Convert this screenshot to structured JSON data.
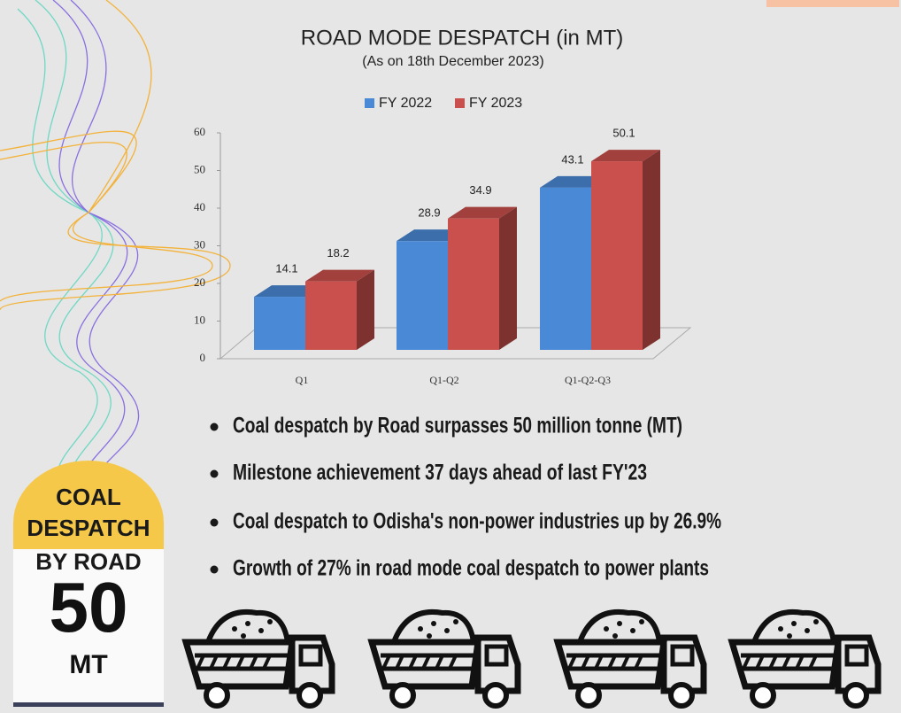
{
  "chart_data": {
    "type": "bar3d",
    "title": "ROAD MODE DESPATCH (in MT)",
    "subtitle": "(As on 18th December 2023)",
    "categories": [
      "Q1",
      "Q1-Q2",
      "Q1-Q2-Q3"
    ],
    "series": [
      {
        "name": "FY 2022",
        "color": "#4a89d6",
        "values": [
          14.1,
          28.9,
          43.1
        ]
      },
      {
        "name": "FY 2023",
        "color": "#c9504c",
        "values": [
          18.2,
          34.9,
          50.1
        ]
      }
    ],
    "ylim": [
      0,
      60
    ],
    "yticks": [
      0,
      10,
      20,
      30,
      40,
      50,
      60
    ],
    "grid": false,
    "legend": "top"
  },
  "bullets": [
    "Coal despatch by Road surpasses 50 million tonne (MT)",
    "Milestone achievement 37 days ahead of last FY'23",
    "Coal despatch to Odisha's non-power industries up by 26.9%",
    "Growth of 27% in road mode coal despatch to power plants"
  ],
  "badge": {
    "line1": "COAL",
    "line2": "DESPATCH",
    "line3": "BY ROAD",
    "number": 50,
    "unit": "MT"
  }
}
